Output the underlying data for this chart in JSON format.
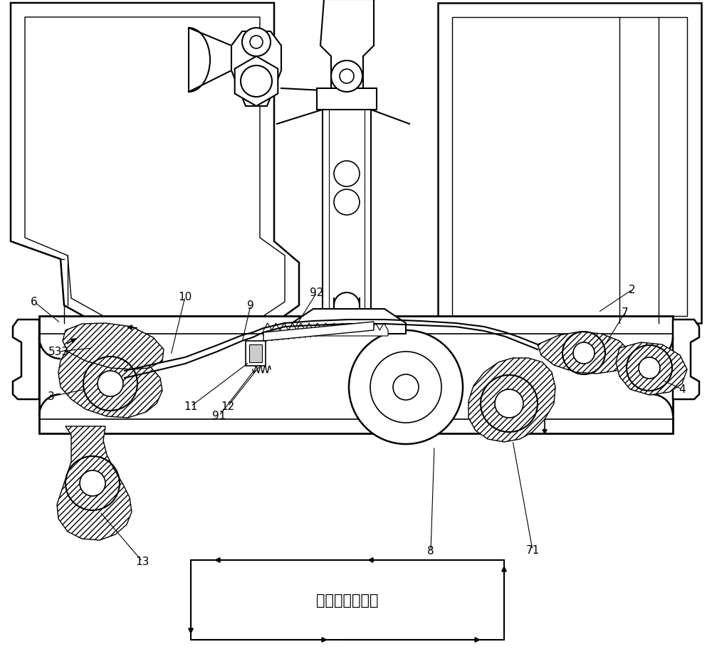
{
  "bg_color": "#ffffff",
  "line_color": "#000000",
  "figsize": [
    10.0,
    9.2
  ],
  "dpi": 100,
  "text_motion": "送布牙运动轨迹"
}
